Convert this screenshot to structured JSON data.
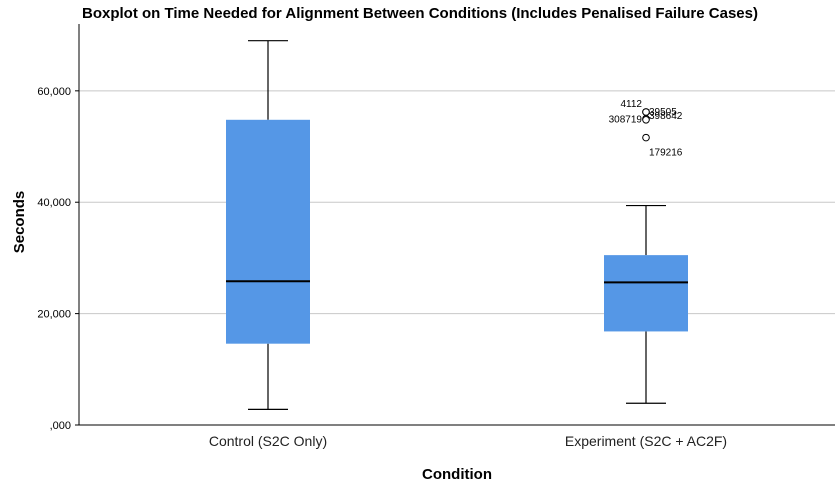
{
  "chart_data": {
    "type": "boxplot",
    "title": "Boxplot on Time Needed for Alignment Between Conditions (Includes Penalised Failure Cases)",
    "xlabel": "Condition",
    "ylabel": "Seconds",
    "ylim": [
      0,
      72000
    ],
    "yticks": [
      {
        "value": 0,
        "label": ",000"
      },
      {
        "value": 20000,
        "label": "20,000"
      },
      {
        "value": 40000,
        "label": "40,000"
      },
      {
        "value": 60000,
        "label": "60,000"
      }
    ],
    "grid": true,
    "box_color": "#5597e6",
    "categories": [
      "Control (S2C Only)",
      "Experiment (S2C + AC2F)"
    ],
    "boxes": [
      {
        "name": "Control (S2C Only)",
        "whisker_low": 2800,
        "q1": 14600,
        "median": 25800,
        "q3": 54800,
        "whisker_high": 69000,
        "outliers": []
      },
      {
        "name": "Experiment (S2C + AC2F)",
        "whisker_low": 3900,
        "q1": 16800,
        "median": 25600,
        "q3": 30500,
        "whisker_high": 39400,
        "outliers": [
          {
            "label": "4112",
            "value": 56200
          },
          {
            "label": "39505",
            "value": 56200
          },
          {
            "label": "308719",
            "value": 55000
          },
          {
            "label": "398642",
            "value": 54800
          },
          {
            "label": "179216",
            "value": 51600
          }
        ]
      }
    ]
  }
}
